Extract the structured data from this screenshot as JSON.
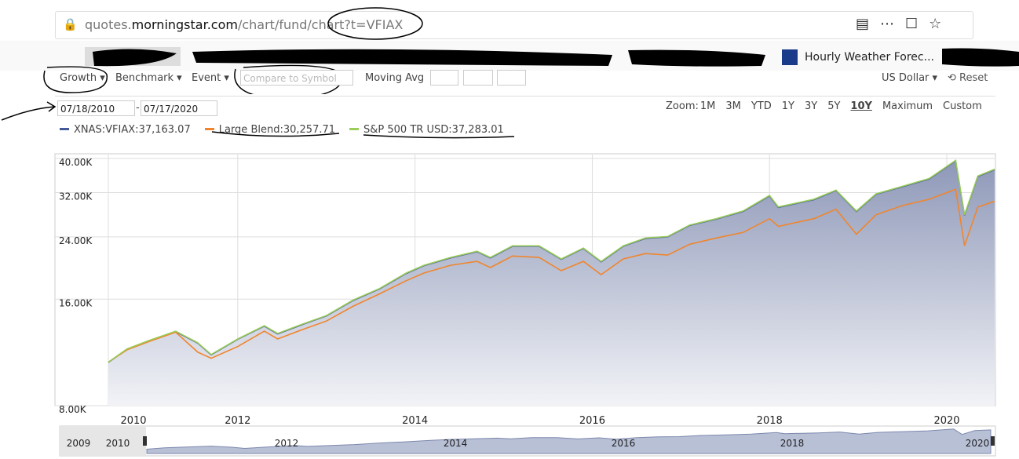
{
  "browser": {
    "url_prefix": "quotes.",
    "url_domain": "morningstar.com",
    "url_path": "/chart/fund/chart?t=VFIAX",
    "bookmark": "Hourly Weather Forec..."
  },
  "toolbar": {
    "growth": "Growth ▾",
    "benchmark": "Benchmark ▾",
    "event": "Event ▾",
    "compare_placeholder": "Compare to Symbol",
    "moving_avg": "Moving Avg",
    "currency": "US Dollar ▾",
    "reset": "⟲ Reset"
  },
  "dates": {
    "start": "07/18/2010",
    "separator": "-",
    "end": "07/17/2020"
  },
  "zoom": {
    "label": "Zoom:",
    "options": [
      "1M",
      "3M",
      "YTD",
      "1Y",
      "3Y",
      "5Y",
      "10Y",
      "Maximum",
      "Custom"
    ],
    "active_index": 6
  },
  "chart_data": {
    "type": "line",
    "log_scale": true,
    "grid": true,
    "x": [
      2010.54,
      2010.75,
      2011.0,
      2011.3,
      2011.55,
      2011.7,
      2012.0,
      2012.3,
      2012.45,
      2012.75,
      2013.0,
      2013.3,
      2013.6,
      2013.9,
      2014.1,
      2014.4,
      2014.7,
      2014.85,
      2015.1,
      2015.4,
      2015.65,
      2015.9,
      2016.1,
      2016.35,
      2016.6,
      2016.85,
      2017.1,
      2017.4,
      2017.7,
      2018.0,
      2018.1,
      2018.5,
      2018.75,
      2018.98,
      2019.2,
      2019.5,
      2019.8,
      2020.1,
      2020.2,
      2020.35,
      2020.54
    ],
    "xlim": [
      2010.54,
      2020.54
    ],
    "xticks": [
      2010,
      2012,
      2014,
      2016,
      2018,
      2020
    ],
    "ylim": [
      8000,
      41000
    ],
    "yticks": [
      {
        "value": 8000,
        "label": "8.00K"
      },
      {
        "value": 16000,
        "label": "16.00K"
      },
      {
        "value": 24000,
        "label": "24.00K"
      },
      {
        "value": 32000,
        "label": "32.00K"
      },
      {
        "value": 40000,
        "label": "40.00K"
      }
    ],
    "series": [
      {
        "name": "XNAS:VFIAX",
        "color": "#44599a",
        "area": true,
        "legend_value_label": "37,163.07",
        "values": [
          10600,
          11540,
          12200,
          12950,
          12010,
          11130,
          12320,
          13420,
          12760,
          13620,
          14340,
          15850,
          17100,
          18900,
          19890,
          20930,
          21800,
          20930,
          22580,
          22580,
          20730,
          22250,
          20400,
          22580,
          23750,
          23990,
          25860,
          26940,
          28320,
          31330,
          29080,
          30570,
          32450,
          28320,
          31660,
          33250,
          34980,
          39370,
          27620,
          35560,
          37163.07
        ]
      },
      {
        "name": "Large Blend",
        "color": "#f0852d",
        "legend_value_label": "30,257.71",
        "values": [
          10620,
          11500,
          12150,
          12900,
          11330,
          10890,
          11750,
          12990,
          12350,
          13180,
          13870,
          15270,
          16560,
          18040,
          18960,
          19950,
          20460,
          19650,
          21180,
          20990,
          19260,
          20460,
          18770,
          20790,
          21520,
          21310,
          22870,
          23820,
          24690,
          27020,
          25700,
          27020,
          28720,
          24400,
          27700,
          29420,
          30640,
          32710,
          22640,
          29130,
          30257.71
        ]
      },
      {
        "name": "S&P 500 TR USD",
        "color": "#9acd5a",
        "legend_value_label": "37,283.01",
        "values": [
          10620,
          11570,
          12230,
          12990,
          12040,
          11160,
          12350,
          13460,
          12800,
          13660,
          14380,
          15900,
          17150,
          18960,
          19950,
          20990,
          21860,
          20990,
          22640,
          22640,
          20790,
          22310,
          20460,
          22640,
          23820,
          24060,
          25930,
          27020,
          28400,
          31420,
          29160,
          30660,
          32540,
          28400,
          31750,
          33350,
          35080,
          39480,
          27700,
          35670,
          37283.01
        ]
      }
    ]
  },
  "navigator": {
    "labels": [
      "2009",
      "2010",
      "2012",
      "2014",
      "2016",
      "2018",
      "2020"
    ]
  }
}
